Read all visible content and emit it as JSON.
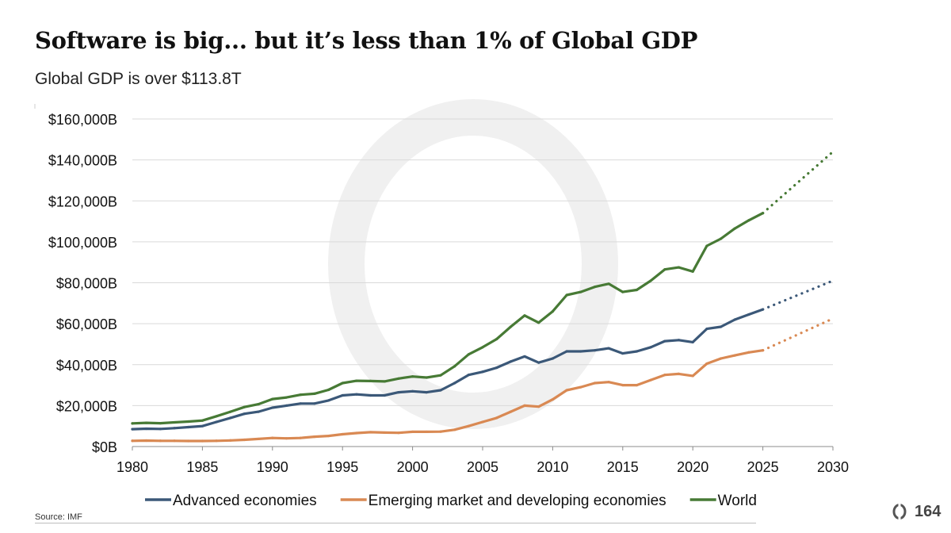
{
  "header": {
    "title": "Software is big... but it’s less than 1% of Global GDP",
    "subtitle": "Global GDP is over $113.8T"
  },
  "footer": {
    "source": "Source: IMF",
    "page_number": "164"
  },
  "colors": {
    "advanced": "#3b5878",
    "emerging": "#d98953",
    "world": "#477a35",
    "grid": "#d9d9d9",
    "watermark": "#f0f0f0",
    "logo": "#555555"
  },
  "chart_data": {
    "type": "line",
    "title": "",
    "xlabel": "",
    "ylabel": "",
    "xlim": [
      1980,
      2030
    ],
    "ylim": [
      0,
      160000
    ],
    "x_ticks": [
      1980,
      1985,
      1990,
      1995,
      2000,
      2005,
      2010,
      2015,
      2020,
      2025,
      2030
    ],
    "x_tick_labels": [
      "1980",
      "1985",
      "1990",
      "1995",
      "2000",
      "2005",
      "2010",
      "2015",
      "2020",
      "2025",
      "2030"
    ],
    "y_ticks": [
      0,
      20000,
      40000,
      60000,
      80000,
      100000,
      120000,
      140000,
      160000
    ],
    "y_tick_labels": [
      "$0B",
      "$20,000B",
      "$40,000B",
      "$60,000B",
      "$80,000B",
      "$100,000B",
      "$120,000B",
      "$140,000B",
      "$160,000B"
    ],
    "grid": true,
    "legend_position": "bottom",
    "series": [
      {
        "name": "Advanced economies",
        "color": "#3b5878",
        "x": [
          1980,
          1981,
          1982,
          1983,
          1984,
          1985,
          1986,
          1987,
          1988,
          1989,
          1990,
          1991,
          1992,
          1993,
          1994,
          1995,
          1996,
          1997,
          1998,
          1999,
          2000,
          2001,
          2002,
          2003,
          2004,
          2005,
          2006,
          2007,
          2008,
          2009,
          2010,
          2011,
          2012,
          2013,
          2014,
          2015,
          2016,
          2017,
          2018,
          2019,
          2020,
          2021,
          2022,
          2023,
          2024,
          2025
        ],
        "values": [
          8500,
          8700,
          8600,
          9000,
          9500,
          10000,
          12000,
          14000,
          16000,
          17000,
          19000,
          20000,
          21000,
          21000,
          22500,
          25000,
          25500,
          25000,
          25000,
          26500,
          27000,
          26500,
          27500,
          31000,
          35000,
          36500,
          38500,
          41500,
          44000,
          41000,
          43000,
          46500,
          46500,
          47000,
          48000,
          45500,
          46500,
          48500,
          51500,
          52000,
          51000,
          57500,
          58500,
          62000,
          64500,
          67000
        ],
        "projection_x": [
          2025,
          2030
        ],
        "projection_values": [
          67000,
          81000
        ]
      },
      {
        "name": "Emerging market and developing economies",
        "color": "#d98953",
        "x": [
          1980,
          1981,
          1982,
          1983,
          1984,
          1985,
          1986,
          1987,
          1988,
          1989,
          1990,
          1991,
          1992,
          1993,
          1994,
          1995,
          1996,
          1997,
          1998,
          1999,
          2000,
          2001,
          2002,
          2003,
          2004,
          2005,
          2006,
          2007,
          2008,
          2009,
          2010,
          2011,
          2012,
          2013,
          2014,
          2015,
          2016,
          2017,
          2018,
          2019,
          2020,
          2021,
          2022,
          2023,
          2024,
          2025
        ],
        "values": [
          2800,
          2900,
          2800,
          2800,
          2700,
          2700,
          2800,
          3000,
          3300,
          3700,
          4200,
          4000,
          4200,
          4800,
          5200,
          6000,
          6600,
          7000,
          6800,
          6700,
          7200,
          7200,
          7300,
          8200,
          10000,
          12000,
          14000,
          17000,
          20000,
          19500,
          23000,
          27500,
          29000,
          31000,
          31500,
          30000,
          30000,
          32500,
          35000,
          35500,
          34500,
          40500,
          43000,
          44500,
          46000,
          47000
        ],
        "projection_x": [
          2025,
          2030
        ],
        "projection_values": [
          47000,
          62500
        ]
      },
      {
        "name": "World",
        "color": "#477a35",
        "x": [
          1980,
          1981,
          1982,
          1983,
          1984,
          1985,
          1986,
          1987,
          1988,
          1989,
          1990,
          1991,
          1992,
          1993,
          1994,
          1995,
          1996,
          1997,
          1998,
          1999,
          2000,
          2001,
          2002,
          2003,
          2004,
          2005,
          2006,
          2007,
          2008,
          2009,
          2010,
          2011,
          2012,
          2013,
          2014,
          2015,
          2016,
          2017,
          2018,
          2019,
          2020,
          2021,
          2022,
          2023,
          2024,
          2025
        ],
        "values": [
          11300,
          11600,
          11400,
          11800,
          12200,
          12700,
          14800,
          17000,
          19300,
          20700,
          23200,
          24000,
          25300,
          25800,
          27700,
          31000,
          32100,
          32000,
          31800,
          33200,
          34200,
          33700,
          34800,
          39200,
          45000,
          48500,
          52500,
          58500,
          64000,
          60500,
          66000,
          74000,
          75500,
          78000,
          79500,
          75500,
          76500,
          81000,
          86500,
          87500,
          85500,
          98000,
          101500,
          106500,
          110500,
          114000
        ],
        "projection_x": [
          2025,
          2030
        ],
        "projection_values": [
          114000,
          144000
        ]
      }
    ]
  }
}
